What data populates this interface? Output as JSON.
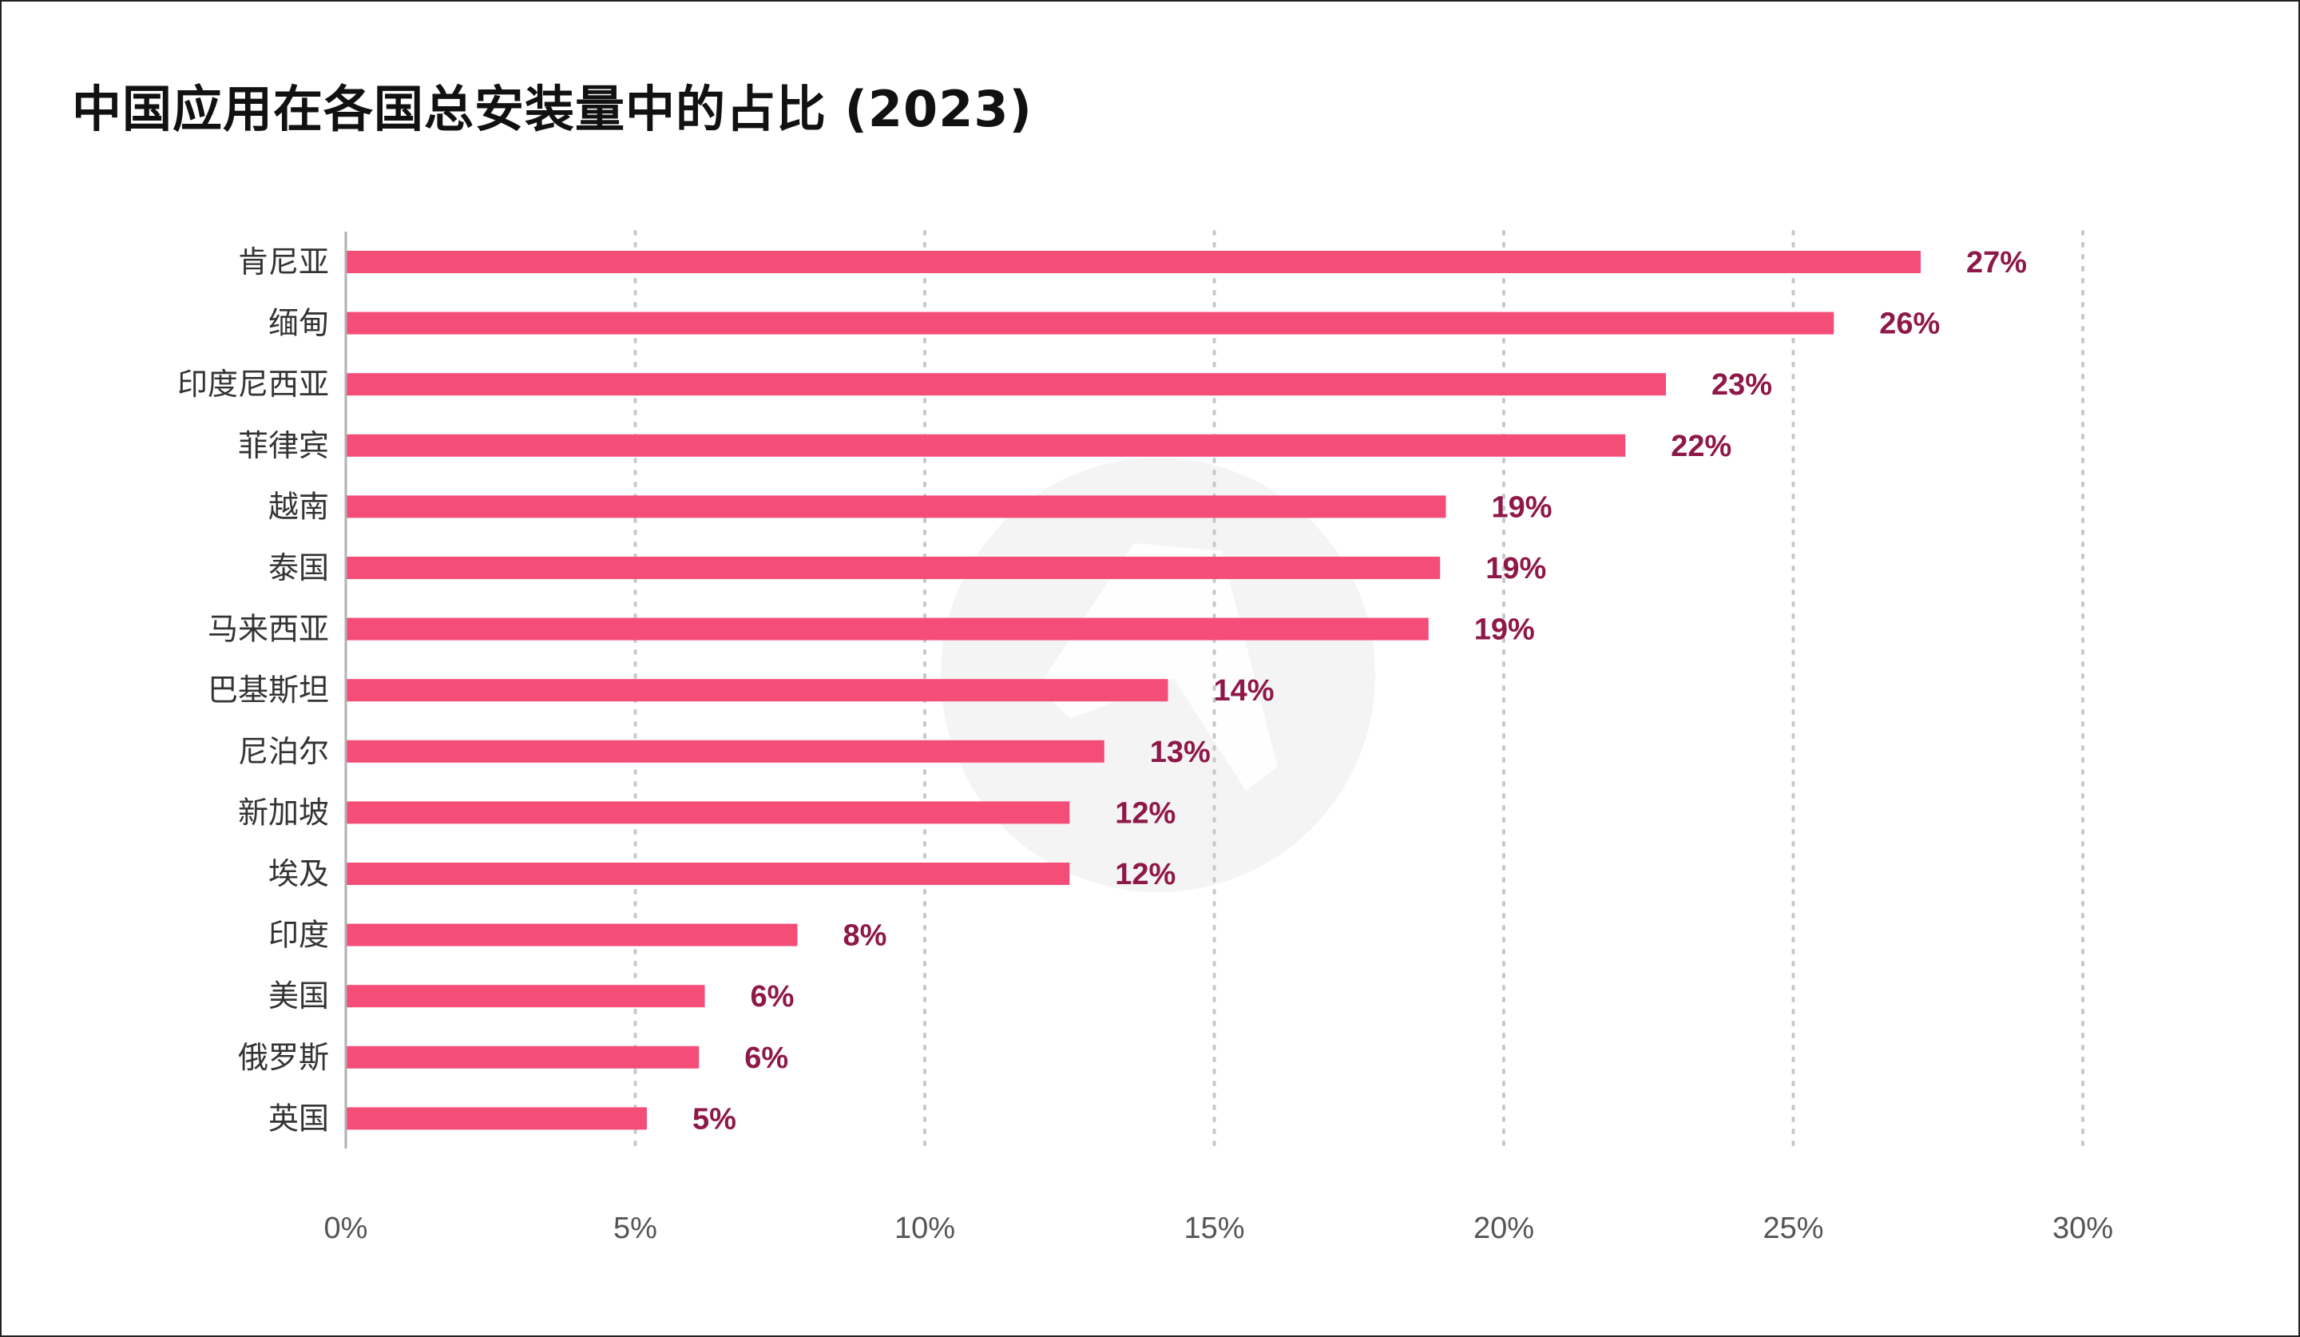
{
  "chart_data": {
    "type": "bar",
    "orientation": "horizontal",
    "title": "中国应用在各国总安装量中的占比 (2023)",
    "xlabel": "",
    "ylabel": "",
    "categories": [
      "肯尼亚",
      "缅甸",
      "印度尼西亚",
      "菲律宾",
      "越南",
      "泰国",
      "马来西亚",
      "巴基斯坦",
      "尼泊尔",
      "新加坡",
      "埃及",
      "印度",
      "美国",
      "俄罗斯",
      "英国"
    ],
    "values": [
      27.2,
      25.7,
      22.8,
      22.1,
      19.0,
      18.9,
      18.7,
      14.2,
      13.1,
      12.5,
      12.5,
      7.8,
      6.2,
      6.1,
      5.2
    ],
    "value_labels": [
      "27%",
      "26%",
      "23%",
      "22%",
      "19%",
      "19%",
      "19%",
      "14%",
      "13%",
      "12%",
      "12%",
      "8%",
      "6%",
      "6%",
      "5%"
    ],
    "xlim": [
      0,
      30
    ],
    "xticks": [
      0,
      5,
      10,
      15,
      20,
      25,
      30
    ],
    "xtick_labels": [
      "0%",
      "5%",
      "10%",
      "15%",
      "20%",
      "25%",
      "30%"
    ],
    "grid": "vertical dotted",
    "legend": "none",
    "colors": {
      "bar": "#f44d78",
      "value_label": "#8e1848",
      "grid": "#c8c8c8",
      "axis": "#b0b0b0",
      "watermark": "#f4f4f4"
    }
  }
}
